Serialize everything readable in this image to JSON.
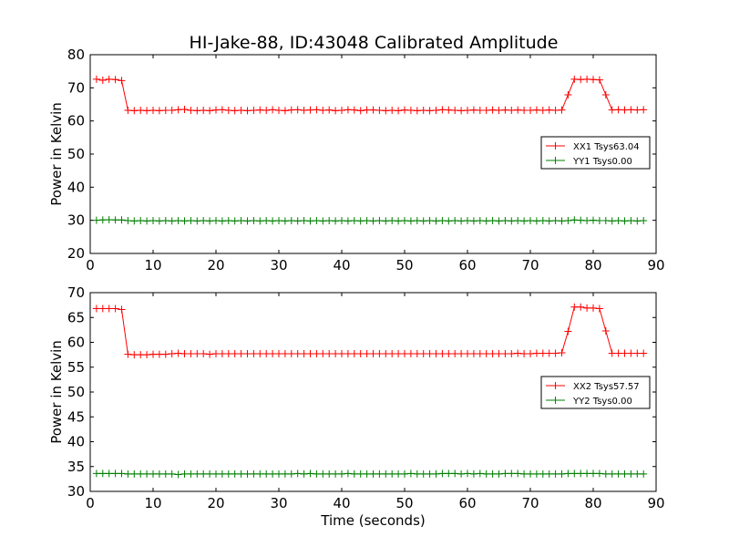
{
  "title": "HI-Jake-88, ID:43048 Calibrated Amplitude",
  "chart_data": [
    {
      "type": "line",
      "title": "HI-Jake-88, ID:43048 Calibrated Amplitude",
      "xlabel": "",
      "ylabel": "Power in Kelvin",
      "xlim": [
        0,
        90
      ],
      "ylim": [
        20,
        80
      ],
      "xticks": [
        0,
        10,
        20,
        30,
        40,
        50,
        60,
        70,
        80,
        90
      ],
      "yticks": [
        20,
        30,
        40,
        50,
        60,
        70,
        80
      ],
      "grid": false,
      "legend_position": "right",
      "x": [
        1,
        2,
        3,
        4,
        5,
        6,
        7,
        8,
        9,
        10,
        11,
        12,
        13,
        14,
        15,
        16,
        17,
        18,
        19,
        20,
        21,
        22,
        23,
        24,
        25,
        26,
        27,
        28,
        29,
        30,
        31,
        32,
        33,
        34,
        35,
        36,
        37,
        38,
        39,
        40,
        41,
        42,
        43,
        44,
        45,
        46,
        47,
        48,
        49,
        50,
        51,
        52,
        53,
        54,
        55,
        56,
        57,
        58,
        59,
        60,
        61,
        62,
        63,
        64,
        65,
        66,
        67,
        68,
        69,
        70,
        71,
        72,
        73,
        74,
        75,
        76,
        77,
        78,
        79,
        80,
        81,
        82,
        83,
        84,
        85,
        86,
        87,
        88
      ],
      "series": [
        {
          "name": "XX1 Tsys63.04",
          "color": "#ff0000",
          "values": [
            72.6,
            72.3,
            72.6,
            72.5,
            72.2,
            63.2,
            63.1,
            63.2,
            63.1,
            63.2,
            63.1,
            63.2,
            63.2,
            63.4,
            63.5,
            63.2,
            63.1,
            63.2,
            63.1,
            63.3,
            63.4,
            63.2,
            63.1,
            63.2,
            63.1,
            63.2,
            63.3,
            63.2,
            63.4,
            63.2,
            63.1,
            63.3,
            63.4,
            63.2,
            63.3,
            63.4,
            63.2,
            63.3,
            63.1,
            63.2,
            63.4,
            63.3,
            63.1,
            63.3,
            63.3,
            63.2,
            63.1,
            63.2,
            63.1,
            63.3,
            63.2,
            63.1,
            63.2,
            63.1,
            63.2,
            63.4,
            63.3,
            63.2,
            63.1,
            63.2,
            63.3,
            63.2,
            63.2,
            63.3,
            63.2,
            63.3,
            63.2,
            63.3,
            63.2,
            63.2,
            63.3,
            63.2,
            63.3,
            63.2,
            63.3,
            67.9,
            72.6,
            72.5,
            72.6,
            72.5,
            72.4,
            67.9,
            63.3,
            63.4,
            63.3,
            63.4,
            63.3,
            63.4
          ]
        },
        {
          "name": "YY1 Tsys0.00",
          "color": "#008000",
          "values": [
            30.0,
            30.1,
            30.2,
            30.1,
            30.1,
            29.9,
            29.8,
            29.9,
            29.8,
            29.9,
            29.8,
            29.9,
            29.8,
            29.9,
            29.8,
            29.9,
            29.8,
            29.9,
            29.8,
            29.9,
            29.8,
            29.9,
            29.8,
            29.9,
            29.8,
            29.9,
            29.8,
            29.9,
            29.8,
            29.9,
            29.8,
            29.9,
            29.8,
            29.9,
            29.8,
            29.9,
            29.8,
            29.9,
            29.8,
            29.9,
            29.8,
            29.9,
            29.8,
            29.9,
            29.8,
            29.9,
            29.8,
            29.9,
            29.8,
            29.9,
            29.8,
            29.9,
            29.8,
            29.9,
            29.8,
            29.9,
            29.8,
            29.9,
            29.8,
            29.9,
            29.8,
            29.9,
            29.8,
            29.9,
            29.8,
            29.9,
            29.8,
            29.9,
            29.8,
            29.9,
            29.8,
            29.9,
            29.8,
            29.9,
            29.8,
            29.9,
            30.1,
            30.0,
            29.9,
            30.0,
            29.9,
            29.9,
            29.8,
            29.9,
            29.8,
            29.9,
            29.8,
            29.9
          ]
        }
      ]
    },
    {
      "type": "line",
      "title": "",
      "xlabel": "Time (seconds)",
      "ylabel": "Power in Kelvin",
      "xlim": [
        0,
        90
      ],
      "ylim": [
        30,
        70
      ],
      "xticks": [
        0,
        10,
        20,
        30,
        40,
        50,
        60,
        70,
        80,
        90
      ],
      "yticks": [
        30,
        35,
        40,
        45,
        50,
        55,
        60,
        65,
        70
      ],
      "grid": false,
      "legend_position": "right",
      "x": [
        1,
        2,
        3,
        4,
        5,
        6,
        7,
        8,
        9,
        10,
        11,
        12,
        13,
        14,
        15,
        16,
        17,
        18,
        19,
        20,
        21,
        22,
        23,
        24,
        25,
        26,
        27,
        28,
        29,
        30,
        31,
        32,
        33,
        34,
        35,
        36,
        37,
        38,
        39,
        40,
        41,
        42,
        43,
        44,
        45,
        46,
        47,
        48,
        49,
        50,
        51,
        52,
        53,
        54,
        55,
        56,
        57,
        58,
        59,
        60,
        61,
        62,
        63,
        64,
        65,
        66,
        67,
        68,
        69,
        70,
        71,
        72,
        73,
        74,
        75,
        76,
        77,
        78,
        79,
        80,
        81,
        82,
        83,
        84,
        85,
        86,
        87,
        88
      ],
      "series": [
        {
          "name": "XX2 Tsys57.57",
          "color": "#ff0000",
          "values": [
            66.8,
            66.8,
            66.8,
            66.8,
            66.6,
            57.6,
            57.5,
            57.5,
            57.5,
            57.6,
            57.6,
            57.6,
            57.7,
            57.8,
            57.7,
            57.7,
            57.7,
            57.7,
            57.6,
            57.7,
            57.7,
            57.7,
            57.7,
            57.7,
            57.7,
            57.7,
            57.7,
            57.7,
            57.7,
            57.7,
            57.7,
            57.7,
            57.7,
            57.7,
            57.7,
            57.7,
            57.7,
            57.7,
            57.7,
            57.7,
            57.7,
            57.7,
            57.7,
            57.7,
            57.7,
            57.7,
            57.7,
            57.7,
            57.7,
            57.7,
            57.7,
            57.7,
            57.7,
            57.7,
            57.7,
            57.7,
            57.7,
            57.7,
            57.7,
            57.7,
            57.7,
            57.7,
            57.7,
            57.7,
            57.7,
            57.7,
            57.7,
            57.8,
            57.7,
            57.7,
            57.8,
            57.8,
            57.8,
            57.8,
            57.9,
            62.2,
            67.1,
            67.1,
            66.9,
            66.9,
            66.8,
            62.3,
            57.8,
            57.8,
            57.8,
            57.8,
            57.8,
            57.8
          ]
        },
        {
          "name": "YY2 Tsys0.00",
          "color": "#008000",
          "values": [
            33.6,
            33.6,
            33.6,
            33.6,
            33.6,
            33.5,
            33.5,
            33.5,
            33.5,
            33.5,
            33.5,
            33.5,
            33.5,
            33.4,
            33.5,
            33.5,
            33.5,
            33.5,
            33.5,
            33.5,
            33.5,
            33.5,
            33.5,
            33.5,
            33.5,
            33.5,
            33.5,
            33.5,
            33.5,
            33.5,
            33.5,
            33.5,
            33.6,
            33.5,
            33.6,
            33.5,
            33.5,
            33.5,
            33.5,
            33.5,
            33.6,
            33.5,
            33.5,
            33.5,
            33.5,
            33.5,
            33.5,
            33.5,
            33.5,
            33.5,
            33.6,
            33.5,
            33.5,
            33.5,
            33.5,
            33.6,
            33.6,
            33.6,
            33.5,
            33.6,
            33.5,
            33.6,
            33.5,
            33.5,
            33.5,
            33.6,
            33.6,
            33.6,
            33.5,
            33.5,
            33.5,
            33.5,
            33.5,
            33.5,
            33.5,
            33.6,
            33.6,
            33.6,
            33.6,
            33.6,
            33.6,
            33.5,
            33.5,
            33.5,
            33.5,
            33.5,
            33.5,
            33.5
          ]
        }
      ]
    }
  ]
}
